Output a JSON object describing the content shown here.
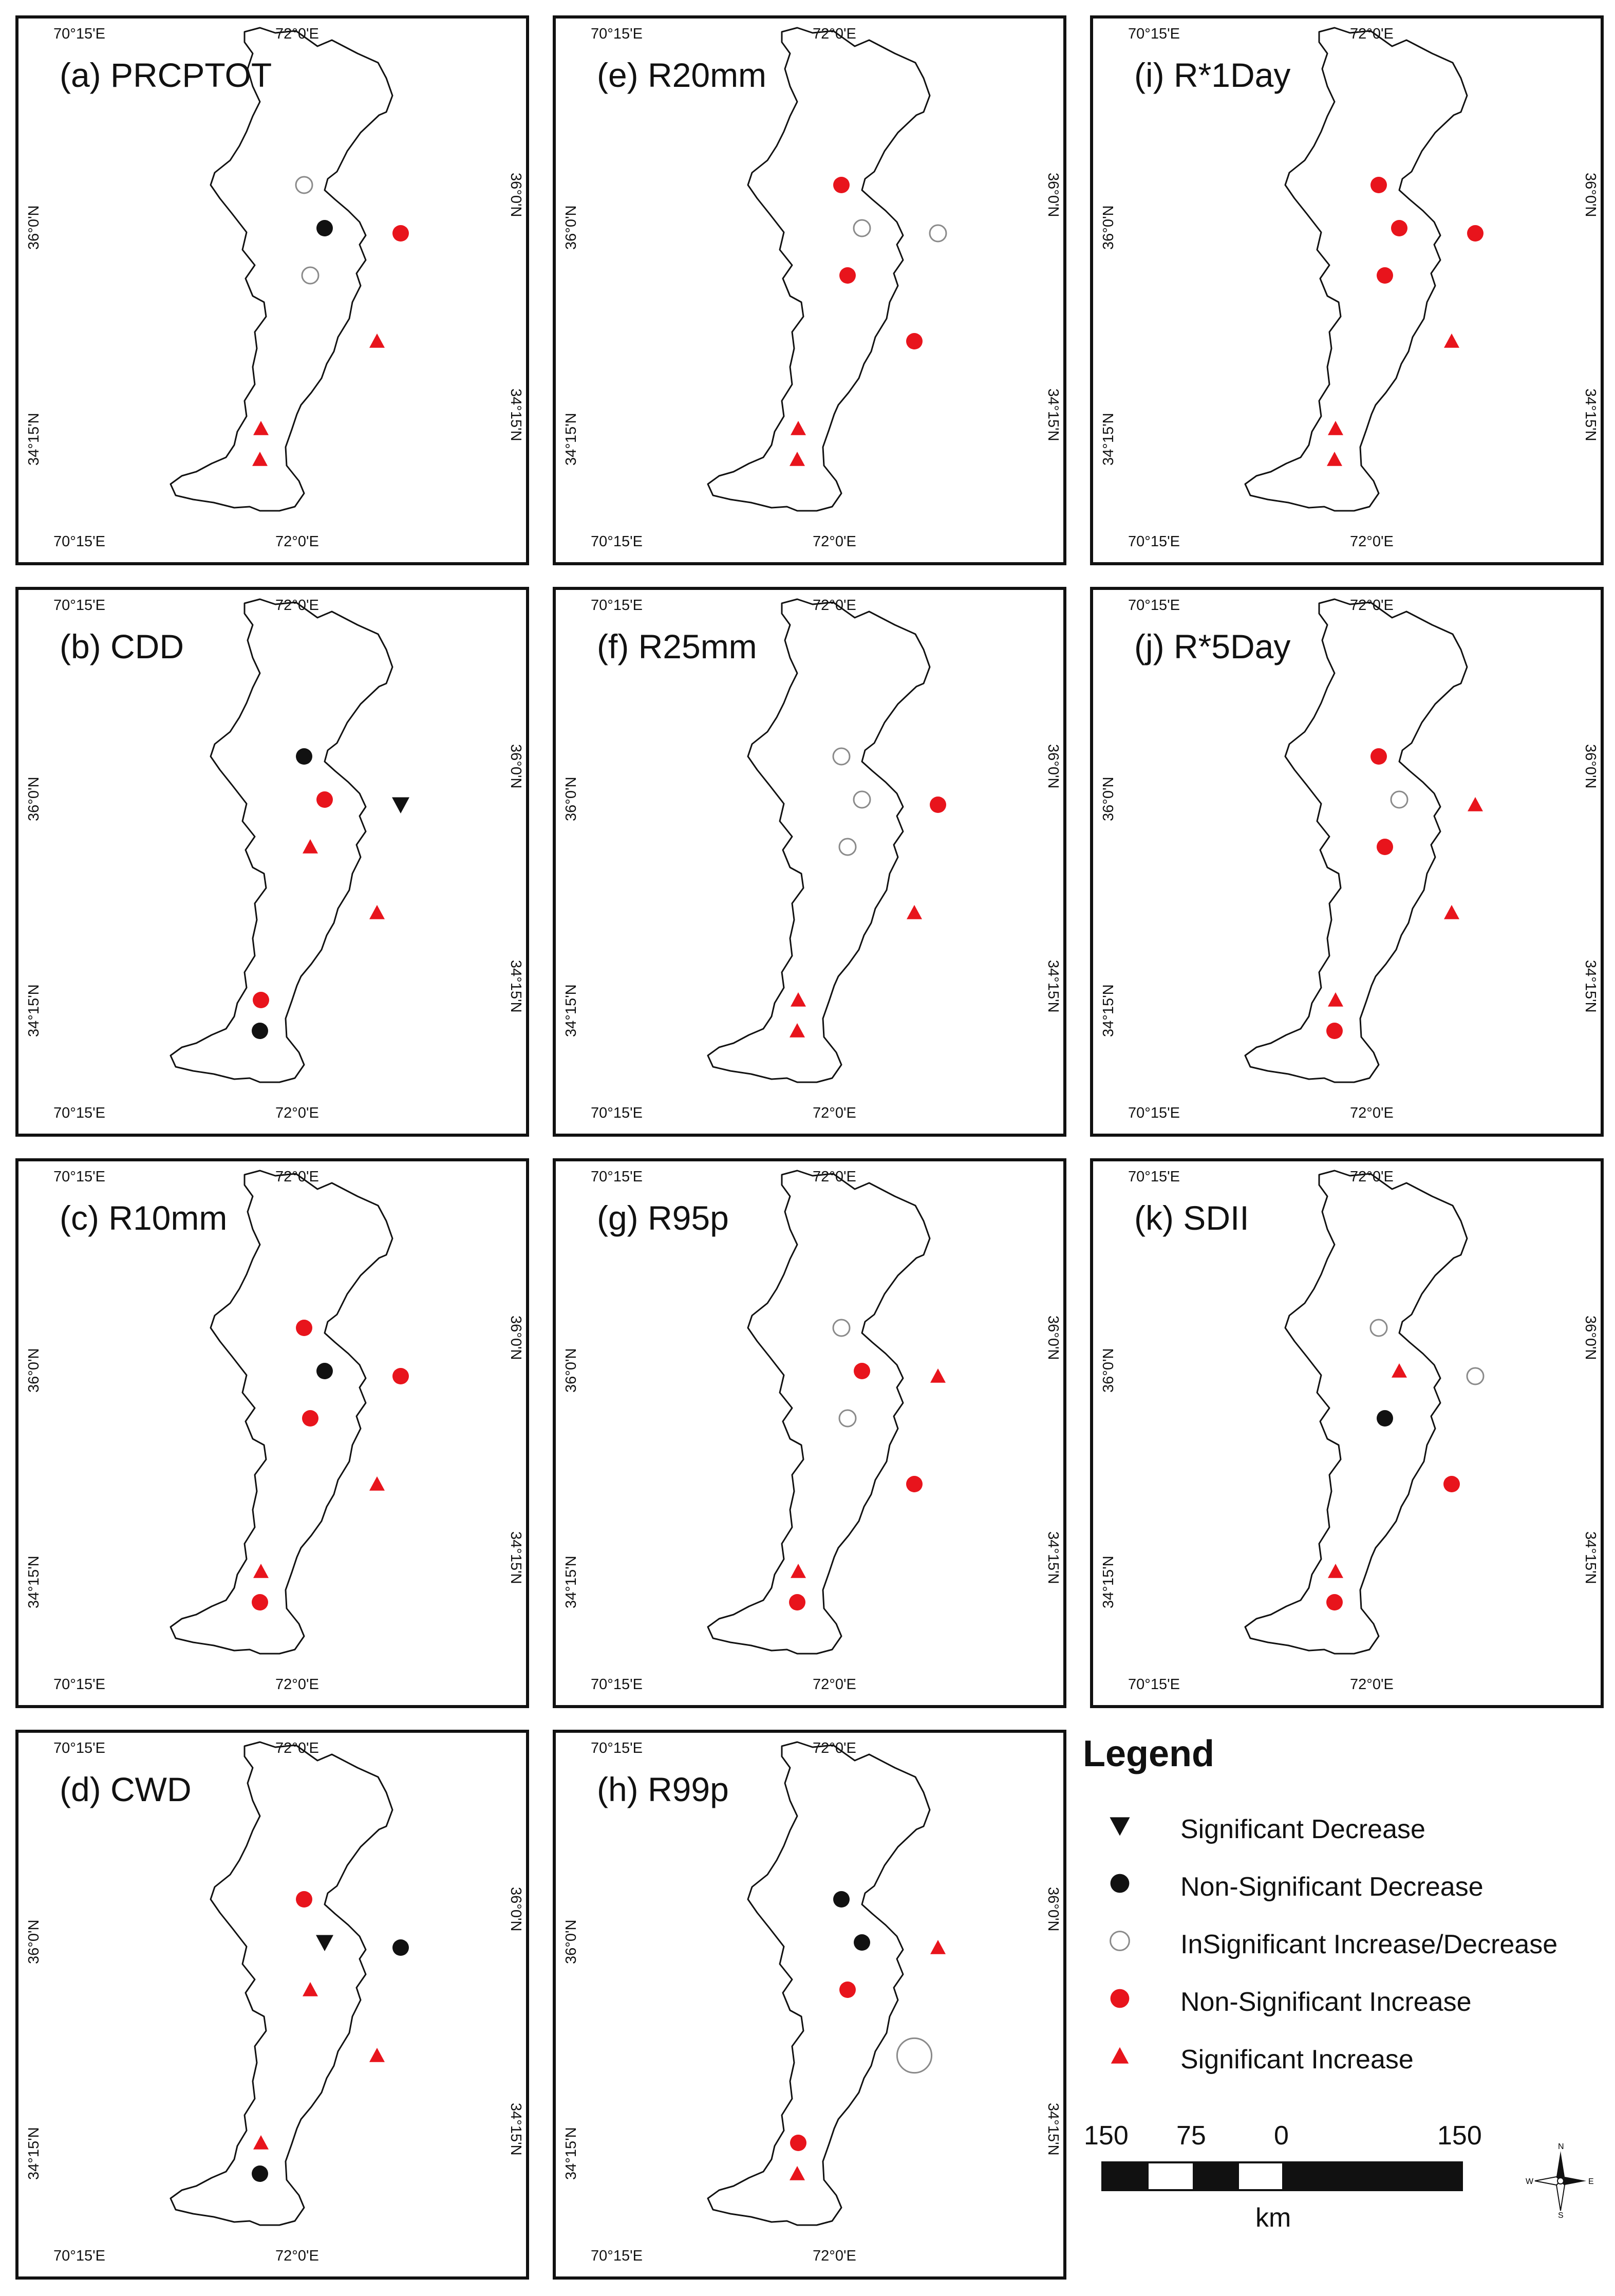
{
  "ticks": {
    "lon_left": "70°15'E",
    "lon_right": "72°0'E",
    "lat_north": "36°0'N",
    "lat_south": "34°15'N"
  },
  "colors": {
    "red": "#e8141c",
    "black": "#111111",
    "hollow": "#8a8a8a",
    "border": "#111111"
  },
  "panels": [
    {
      "id": "a",
      "title": "(a) PRCPTOT",
      "stations": [
        {
          "code": "S1",
          "symbol": "insig_circle"
        },
        {
          "code": "S2",
          "symbol": "nonsig_dec"
        },
        {
          "code": "S3",
          "symbol": "nonsig_inc"
        },
        {
          "code": "S4",
          "symbol": "insig_circle"
        },
        {
          "code": "S5",
          "symbol": "sig_inc"
        },
        {
          "code": "S6",
          "symbol": "sig_inc"
        },
        {
          "code": "S7",
          "symbol": "sig_inc"
        }
      ]
    },
    {
      "id": "b",
      "title": "(b) CDD",
      "stations": [
        {
          "code": "S1",
          "symbol": "nonsig_dec"
        },
        {
          "code": "S2",
          "symbol": "nonsig_inc"
        },
        {
          "code": "S3",
          "symbol": "sig_dec"
        },
        {
          "code": "S4",
          "symbol": "sig_inc"
        },
        {
          "code": "S5",
          "symbol": "sig_inc"
        },
        {
          "code": "S6",
          "symbol": "nonsig_inc"
        },
        {
          "code": "S7",
          "symbol": "nonsig_dec"
        }
      ]
    },
    {
      "id": "c",
      "title": "(c) R10mm",
      "stations": [
        {
          "code": "S1",
          "symbol": "nonsig_inc"
        },
        {
          "code": "S2",
          "symbol": "nonsig_dec"
        },
        {
          "code": "S3",
          "symbol": "nonsig_inc"
        },
        {
          "code": "S4",
          "symbol": "nonsig_inc"
        },
        {
          "code": "S5",
          "symbol": "sig_inc"
        },
        {
          "code": "S6",
          "symbol": "sig_inc"
        },
        {
          "code": "S7",
          "symbol": "nonsig_inc"
        }
      ]
    },
    {
      "id": "d",
      "title": "(d) CWD",
      "stations": [
        {
          "code": "S1",
          "symbol": "nonsig_inc"
        },
        {
          "code": "S2",
          "symbol": "sig_dec"
        },
        {
          "code": "S3",
          "symbol": "nonsig_dec"
        },
        {
          "code": "S4",
          "symbol": "sig_inc"
        },
        {
          "code": "S5",
          "symbol": "sig_inc"
        },
        {
          "code": "S6",
          "symbol": "sig_inc"
        },
        {
          "code": "S7",
          "symbol": "nonsig_dec"
        }
      ]
    },
    {
      "id": "e",
      "title": "(e) R20mm",
      "stations": [
        {
          "code": "S1",
          "symbol": "nonsig_inc"
        },
        {
          "code": "S2",
          "symbol": "insig_circle"
        },
        {
          "code": "S3",
          "symbol": "insig_circle"
        },
        {
          "code": "S4",
          "symbol": "nonsig_inc"
        },
        {
          "code": "S5",
          "symbol": "nonsig_inc"
        },
        {
          "code": "S6",
          "symbol": "sig_inc"
        },
        {
          "code": "S7",
          "symbol": "sig_inc"
        }
      ]
    },
    {
      "id": "f",
      "title": "(f) R25mm",
      "stations": [
        {
          "code": "S1",
          "symbol": "insig_circle"
        },
        {
          "code": "S2",
          "symbol": "insig_circle"
        },
        {
          "code": "S3",
          "symbol": "nonsig_inc"
        },
        {
          "code": "S4",
          "symbol": "insig_circle"
        },
        {
          "code": "S5",
          "symbol": "sig_inc"
        },
        {
          "code": "S6",
          "symbol": "sig_inc"
        },
        {
          "code": "S7",
          "symbol": "sig_inc"
        }
      ]
    },
    {
      "id": "g",
      "title": "(g) R95p",
      "stations": [
        {
          "code": "S1",
          "symbol": "insig_circle"
        },
        {
          "code": "S2",
          "symbol": "nonsig_inc"
        },
        {
          "code": "S3",
          "symbol": "sig_inc"
        },
        {
          "code": "S4",
          "symbol": "insig_circle"
        },
        {
          "code": "S5",
          "symbol": "nonsig_inc"
        },
        {
          "code": "S6",
          "symbol": "sig_inc"
        },
        {
          "code": "S7",
          "symbol": "nonsig_inc"
        }
      ]
    },
    {
      "id": "h",
      "title": "(h) R99p",
      "stations": [
        {
          "code": "S1",
          "symbol": "nonsig_dec"
        },
        {
          "code": "S2",
          "symbol": "nonsig_dec"
        },
        {
          "code": "S3",
          "symbol": "sig_inc"
        },
        {
          "code": "S4",
          "symbol": "nonsig_inc"
        },
        {
          "code": "S5",
          "symbol": "insig_circle_large"
        },
        {
          "code": "S6",
          "symbol": "nonsig_inc"
        },
        {
          "code": "S7",
          "symbol": "sig_inc"
        }
      ]
    },
    {
      "id": "i",
      "title": "(i) R*1Day",
      "stations": [
        {
          "code": "S1",
          "symbol": "nonsig_inc"
        },
        {
          "code": "S2",
          "symbol": "nonsig_inc"
        },
        {
          "code": "S3",
          "symbol": "nonsig_inc"
        },
        {
          "code": "S4",
          "symbol": "nonsig_inc"
        },
        {
          "code": "S5",
          "symbol": "sig_inc"
        },
        {
          "code": "S6",
          "symbol": "sig_inc"
        },
        {
          "code": "S7",
          "symbol": "sig_inc"
        }
      ]
    },
    {
      "id": "j",
      "title": "(j) R*5Day",
      "stations": [
        {
          "code": "S1",
          "symbol": "nonsig_inc"
        },
        {
          "code": "S2",
          "symbol": "insig_circle"
        },
        {
          "code": "S3",
          "symbol": "sig_inc"
        },
        {
          "code": "S4",
          "symbol": "nonsig_inc"
        },
        {
          "code": "S5",
          "symbol": "sig_inc"
        },
        {
          "code": "S6",
          "symbol": "sig_inc"
        },
        {
          "code": "S7",
          "symbol": "nonsig_inc"
        }
      ]
    },
    {
      "id": "k",
      "title": "(k) SDII",
      "stations": [
        {
          "code": "S1",
          "symbol": "insig_circle"
        },
        {
          "code": "S2",
          "symbol": "sig_inc"
        },
        {
          "code": "S3",
          "symbol": "insig_circle"
        },
        {
          "code": "S4",
          "symbol": "nonsig_dec"
        },
        {
          "code": "S5",
          "symbol": "nonsig_inc"
        },
        {
          "code": "S6",
          "symbol": "sig_inc"
        },
        {
          "code": "S7",
          "symbol": "nonsig_inc"
        }
      ]
    }
  ],
  "legend": {
    "title": "Legend",
    "items": [
      {
        "symbol": "sig_dec",
        "label": "Significant Decrease"
      },
      {
        "symbol": "nonsig_dec",
        "label": "Non-Significant Decrease"
      },
      {
        "symbol": "insig_circle",
        "label": "InSignificant Increase/Decrease"
      },
      {
        "symbol": "nonsig_inc",
        "label": "Non-Significant Increase"
      },
      {
        "symbol": "sig_inc",
        "label": "Significant Increase"
      }
    ]
  },
  "scale_bar": {
    "labels": [
      "150",
      "75",
      "0",
      "150"
    ],
    "unit": "km"
  },
  "north_arrow": {
    "n": "N",
    "s": "S",
    "e": "E",
    "w": "W"
  }
}
